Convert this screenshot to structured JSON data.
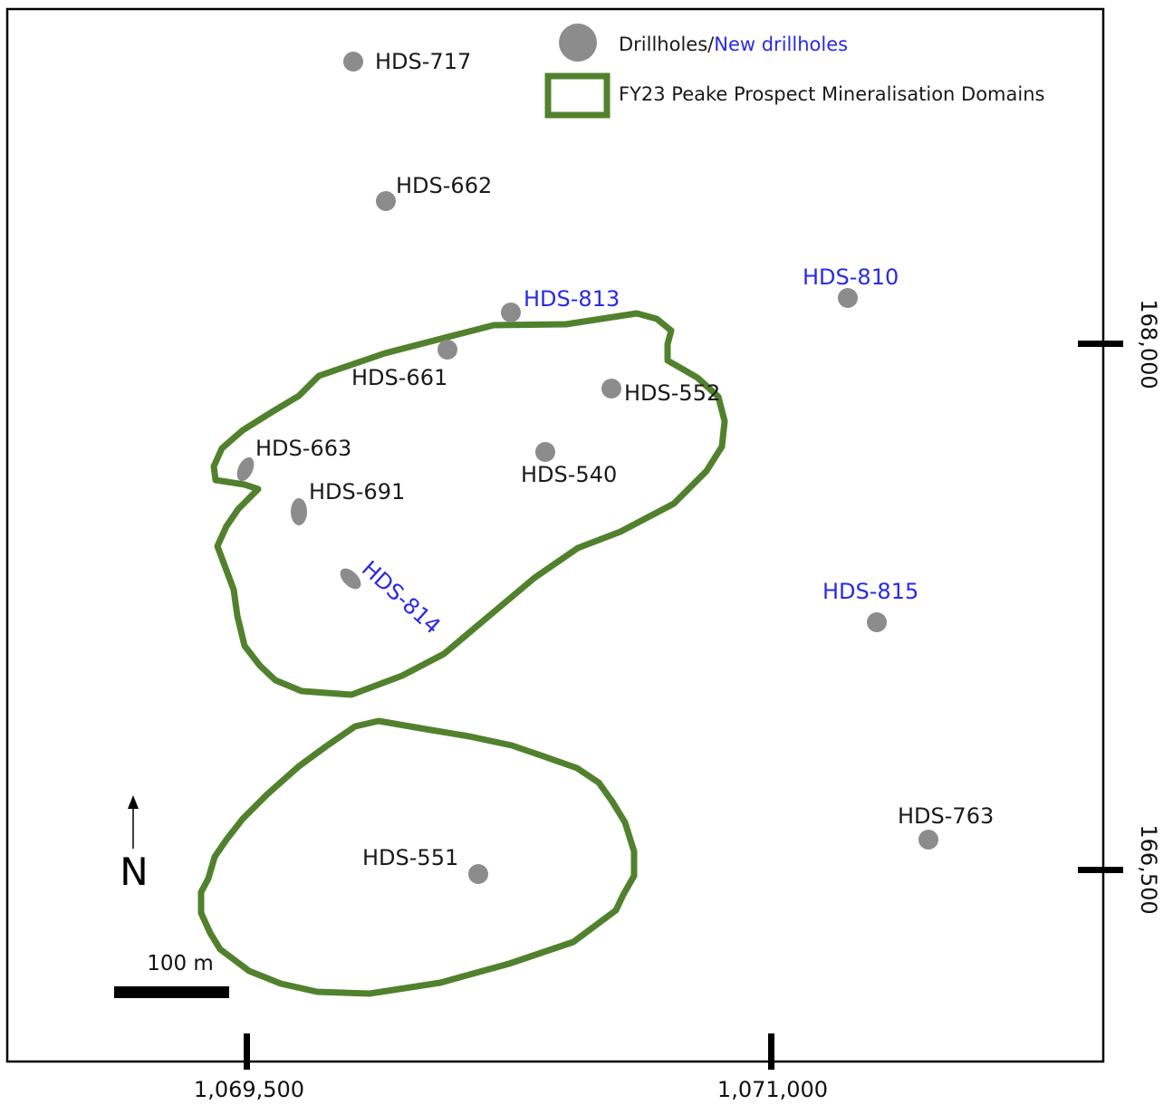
{
  "colors": {
    "drillhole": "#8c8c8c",
    "domain_outline": "#52812e",
    "new_label": "#2a2ae6",
    "label": "#1a1a1a",
    "frame": "#000000"
  },
  "legend": {
    "drillholes_label": "Drillholes/",
    "new_drillholes_label": "New drillholes",
    "domains_label": "FY23 Peake Prospect Mineralisation Domains"
  },
  "drillholes": [
    {
      "id": "HDS-717",
      "type": "existing"
    },
    {
      "id": "HDS-662",
      "type": "existing"
    },
    {
      "id": "HDS-813",
      "type": "new"
    },
    {
      "id": "HDS-810",
      "type": "new"
    },
    {
      "id": "HDS-661",
      "type": "existing"
    },
    {
      "id": "HDS-552",
      "type": "existing"
    },
    {
      "id": "HDS-663",
      "type": "existing"
    },
    {
      "id": "HDS-540",
      "type": "existing"
    },
    {
      "id": "HDS-691",
      "type": "existing"
    },
    {
      "id": "HDS-814",
      "type": "new"
    },
    {
      "id": "HDS-815",
      "type": "new"
    },
    {
      "id": "HDS-763",
      "type": "existing"
    },
    {
      "id": "HDS-551",
      "type": "existing"
    }
  ],
  "axes": {
    "easting_ticks": [
      "1,069,500",
      "1,071,000"
    ],
    "northing_ticks": [
      "168,000",
      "166,500"
    ]
  },
  "north_arrow": {
    "label": "N"
  },
  "scale_bar": {
    "label": "100 m"
  }
}
